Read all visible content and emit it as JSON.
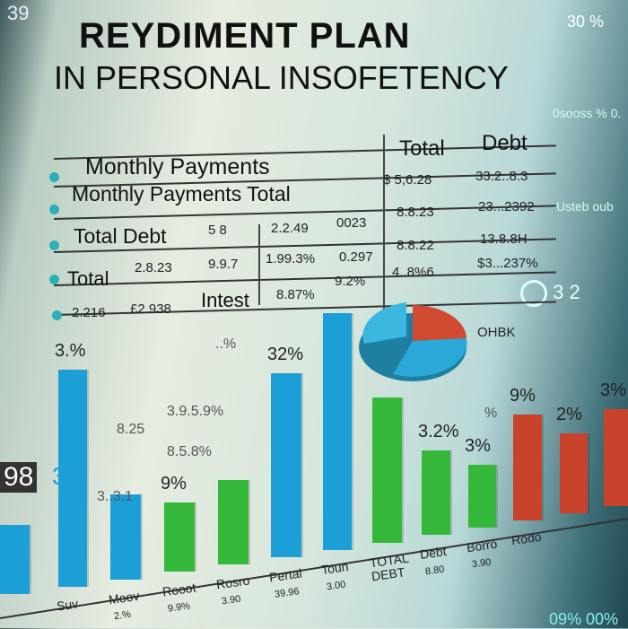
{
  "title": {
    "line1": "REYDIMENT PLAN",
    "line2": "IN PERSONAL INSOFETENCY"
  },
  "table": {
    "header": [
      "Total",
      "Debt"
    ],
    "rows": [
      {
        "label": "Monthly  Payments",
        "cells": []
      },
      {
        "label": "Monthly Payments  Total",
        "cells": [
          "$ 5,6.28",
          "33.2..8.3"
        ]
      },
      {
        "label": "Total Debt",
        "cells": [
          "5 8",
          "2.2.49",
          "0023",
          "8.8.23",
          "23...2392"
        ]
      },
      {
        "label": "Total",
        "cells": [
          "2.8.23",
          "9.9.7",
          "1.99.3%",
          "0.297",
          "8.8.22",
          "13.8.8H"
        ]
      },
      {
        "label": "2.216",
        "cells": [
          "£2.938",
          "Intest",
          "8.87%",
          "9.2%",
          "4..8%6",
          "$3...237%"
        ]
      }
    ],
    "bullet_color": "#2bb0b8"
  },
  "pie": {
    "label": "OHBK",
    "colors": [
      "#2aa9d8",
      "#d14b30",
      "#1f9fc4"
    ]
  },
  "side_text": {
    "top_right": "30 %",
    "right1": "0sooss % 0.",
    "right2": "Usteb oub",
    "ring": "3 2",
    "left_big": "98",
    "left_blue": "32",
    "bottom_right": "09% 00%",
    "top_left": "39"
  },
  "chart_data": {
    "type": "bar",
    "title": "",
    "colors": {
      "blue": "#1c9fd6",
      "green": "#35b83a",
      "red": "#c9422c"
    },
    "categories": [
      "",
      "Suv",
      "Moov",
      "Rooot",
      "Rosro",
      "Pertal",
      "Toun",
      "TOTAL DEBT",
      "Debt",
      "Borro",
      "Rodo",
      "",
      ""
    ],
    "values": [
      77,
      242,
      95,
      77,
      94,
      205,
      264,
      162,
      94,
      70,
      118,
      89,
      108
    ],
    "bar_colors": [
      "blue",
      "blue",
      "blue",
      "green",
      "green",
      "blue",
      "blue",
      "green",
      "green",
      "green",
      "red",
      "red",
      "red"
    ],
    "data_labels": [
      "",
      "3.%",
      "",
      "9%",
      "",
      "32%",
      "",
      "",
      "3.2%",
      "3%",
      "9%",
      "2%",
      "3%"
    ],
    "sub_labels": [
      "",
      "",
      "2.%",
      "9.9%",
      "3.90",
      "39.96",
      "3.00",
      "",
      "8.80",
      "3.90",
      "",
      "",
      ""
    ],
    "floating_labels": [
      "8.25",
      "3.9.5.9%",
      "8.5.8%",
      "3..3.1",
      "..%",
      "%"
    ]
  }
}
